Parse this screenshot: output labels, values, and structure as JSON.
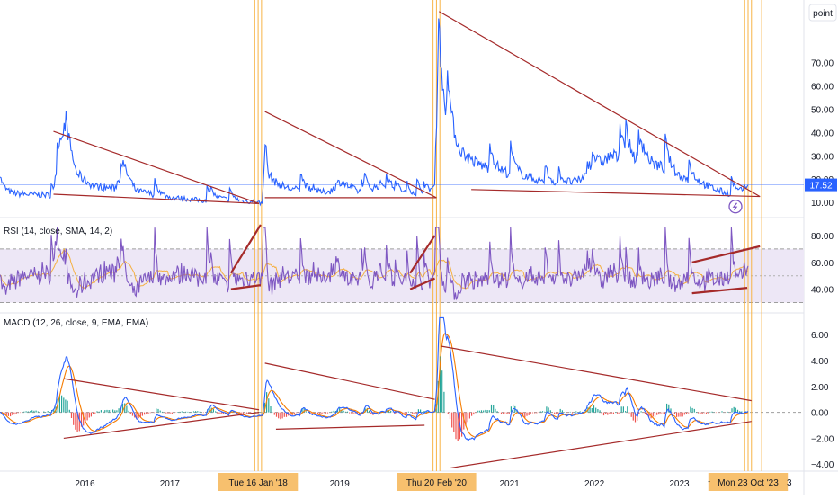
{
  "colors": {
    "price": "#2962ff",
    "trend": "#a52a2a",
    "rsi": "#7e57c2",
    "rsi_ma": "#f5b041",
    "rsi_band": "#ede7f6",
    "macd": "#2962ff",
    "signal": "#f57c00",
    "hist_pos": "#26a69a",
    "hist_neg": "#ef5350",
    "vline": "#f7b345",
    "price_tag": "#2962ff",
    "date_tag": "#f7c06e",
    "axis_text": "#131722",
    "alert": "#7e57c2"
  },
  "toolbar": {
    "scale_label": "point"
  },
  "alert_icon": "lightning-alert-icon",
  "chart_data": [
    {
      "type": "line",
      "name": "price-pane",
      "x": [
        2015.0,
        2015.3,
        2015.63,
        2015.75,
        2015.9,
        2016.1,
        2016.35,
        2016.45,
        2016.6,
        2016.8,
        2017.0,
        2017.2,
        2017.4,
        2017.6,
        2017.8,
        2018.0,
        2018.09,
        2018.12,
        2018.16,
        2018.25,
        2018.4,
        2018.6,
        2018.75,
        2018.9,
        2019.0,
        2019.2,
        2019.35,
        2019.5,
        2019.65,
        2019.8,
        2020.0,
        2020.12,
        2020.15,
        2020.17,
        2020.2,
        2020.3,
        2020.4,
        2020.6,
        2020.8,
        2021.0,
        2021.2,
        2021.4,
        2021.6,
        2021.8,
        2022.0,
        2022.2,
        2022.4,
        2022.6,
        2022.8,
        2023.0,
        2023.2,
        2023.4,
        2023.55,
        2023.7,
        2023.81
      ],
      "values": [
        14.0,
        13.5,
        13.0,
        40.5,
        22.0,
        17.0,
        16.0,
        24.0,
        15.0,
        13.5,
        12.0,
        11.5,
        10.8,
        11.5,
        10.5,
        10.2,
        9.5,
        37.0,
        22.0,
        18.5,
        16.0,
        15.0,
        13.5,
        15.0,
        19.0,
        15.0,
        14.0,
        18.0,
        15.5,
        13.5,
        13.2,
        16.0,
        49.0,
        82.0,
        57.0,
        40.0,
        32.0,
        27.0,
        24.0,
        22.5,
        21.0,
        19.0,
        17.5,
        19.0,
        24.0,
        30.0,
        28.0,
        27.0,
        25.0,
        21.0,
        19.0,
        16.0,
        14.0,
        13.5,
        17.52
      ],
      "ylim": [
        5,
        95
      ],
      "y_ticks": [
        "10.00",
        "20.00",
        "30.00",
        "40.00",
        "50.00",
        "60.00",
        "70.00"
      ],
      "last_value": "17.52"
    },
    {
      "type": "line",
      "name": "rsi-pane",
      "title": "RSI (14, close, SMA, 14, 2)",
      "x_range": [
        2015.0,
        2023.81
      ],
      "ylim": [
        25,
        88
      ],
      "y_ticks": [
        "40.00",
        "60.00",
        "80.00"
      ],
      "band": [
        30,
        70
      ],
      "midline": 50
    },
    {
      "type": "line",
      "name": "macd-pane",
      "title": "MACD (12, 26, close, 9, EMA, EMA)",
      "x_range": [
        2015.0,
        2023.81
      ],
      "ylim": [
        -4.4,
        7.4
      ],
      "y_ticks": [
        "−4.00",
        "−2.00",
        "0.00",
        "2.00",
        "4.00",
        "6.00"
      ]
    }
  ],
  "x_axis": {
    "ticks": [
      {
        "label": "2016",
        "x": 2016.0
      },
      {
        "label": "2017",
        "x": 2017.0
      },
      {
        "label": "2019",
        "x": 2019.0
      },
      {
        "label": "2021",
        "x": 2021.0
      },
      {
        "label": "2022",
        "x": 2022.0
      },
      {
        "label": "2023",
        "x": 2023.0
      }
    ],
    "date_tags": [
      {
        "label": "Tue 16 Jan '18",
        "x": 2018.04
      },
      {
        "label": "Thu 20 Feb '20",
        "x": 2020.14
      },
      {
        "label": "Mon 23 Oct '23",
        "x": 2023.81
      }
    ],
    "edge_glyphs": [
      "↑",
      "3"
    ],
    "vlines": [
      2018.0,
      2018.04,
      2018.08,
      2020.1,
      2020.14,
      2020.18,
      2023.77,
      2023.81,
      2023.85,
      2023.97
    ]
  }
}
